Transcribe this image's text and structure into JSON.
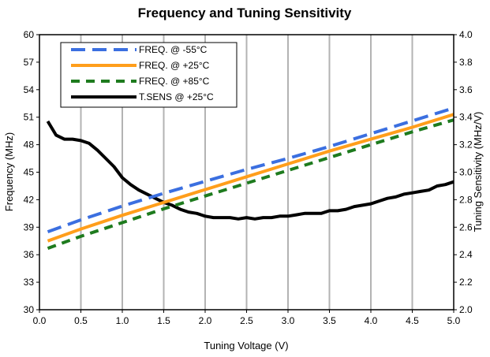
{
  "chart_data": {
    "type": "line",
    "title": "Frequency and Tuning Sensitivity",
    "xlabel": "Tuning Voltage (V)",
    "ylabel_left": "Frequency (MHz)",
    "ylabel_right": "Tuning Sensitivity (MHz/V)",
    "xlim": [
      0.0,
      5.0
    ],
    "ylim_left": [
      30,
      60
    ],
    "ylim_right": [
      2.0,
      4.0
    ],
    "x_ticks": [
      "0.0",
      "0.5",
      "1.0",
      "1.5",
      "2.0",
      "2.5",
      "3.0",
      "3.5",
      "4.0",
      "4.5",
      "5.0"
    ],
    "y_ticks_left": [
      "30",
      "33",
      "36",
      "39",
      "42",
      "45",
      "48",
      "51",
      "54",
      "57",
      "60"
    ],
    "y_ticks_right": [
      "2.0",
      "2.2",
      "2.4",
      "2.6",
      "2.8",
      "3.0",
      "3.2",
      "3.4",
      "3.6",
      "3.8",
      "4.0"
    ],
    "grid": "vertical",
    "legend_position": "top-left",
    "series": [
      {
        "name": "FREQ. @ -55°C",
        "axis": "left",
        "color": "#3b6fe0",
        "style": "dashed",
        "x": [
          0.1,
          0.5,
          1.0,
          1.5,
          2.0,
          2.5,
          3.0,
          3.5,
          4.0,
          4.5,
          5.0
        ],
        "y": [
          38.5,
          39.8,
          41.3,
          42.7,
          44.0,
          45.3,
          46.5,
          47.8,
          49.2,
          50.6,
          52.0
        ]
      },
      {
        "name": "FREQ. @ +25°C",
        "axis": "left",
        "color": "#ff9e1b",
        "style": "solid",
        "x": [
          0.1,
          0.5,
          1.0,
          1.5,
          2.0,
          2.5,
          3.0,
          3.5,
          4.0,
          4.5,
          5.0
        ],
        "y": [
          37.5,
          38.8,
          40.3,
          41.7,
          43.1,
          44.5,
          45.9,
          47.3,
          48.6,
          49.9,
          51.3
        ]
      },
      {
        "name": "FREQ. @ +85°C",
        "axis": "left",
        "color": "#1e7b1e",
        "style": "dashed",
        "x": [
          0.1,
          0.5,
          1.0,
          1.5,
          2.0,
          2.5,
          3.0,
          3.5,
          4.0,
          4.5,
          5.0
        ],
        "y": [
          36.7,
          38.0,
          39.5,
          41.0,
          42.4,
          43.8,
          45.2,
          46.6,
          48.0,
          49.4,
          50.7
        ]
      },
      {
        "name": "T.SENS @ +25°C",
        "axis": "right",
        "color": "#000000",
        "style": "solid",
        "x": [
          0.1,
          0.2,
          0.3,
          0.4,
          0.5,
          0.6,
          0.7,
          0.8,
          0.9,
          1.0,
          1.1,
          1.2,
          1.3,
          1.4,
          1.5,
          1.6,
          1.7,
          1.8,
          1.9,
          2.0,
          2.1,
          2.2,
          2.3,
          2.4,
          2.5,
          2.6,
          2.7,
          2.8,
          2.9,
          3.0,
          3.1,
          3.2,
          3.3,
          3.4,
          3.5,
          3.6,
          3.7,
          3.8,
          3.9,
          4.0,
          4.1,
          4.2,
          4.3,
          4.4,
          4.5,
          4.6,
          4.7,
          4.8,
          4.9,
          5.0
        ],
        "y": [
          3.37,
          3.27,
          3.24,
          3.24,
          3.23,
          3.21,
          3.16,
          3.1,
          3.04,
          2.96,
          2.91,
          2.87,
          2.84,
          2.81,
          2.78,
          2.76,
          2.73,
          2.71,
          2.7,
          2.68,
          2.67,
          2.67,
          2.67,
          2.66,
          2.67,
          2.66,
          2.67,
          2.67,
          2.68,
          2.68,
          2.69,
          2.7,
          2.7,
          2.7,
          2.72,
          2.72,
          2.73,
          2.75,
          2.76,
          2.77,
          2.79,
          2.81,
          2.82,
          2.84,
          2.85,
          2.86,
          2.87,
          2.9,
          2.91,
          2.93
        ]
      }
    ]
  }
}
